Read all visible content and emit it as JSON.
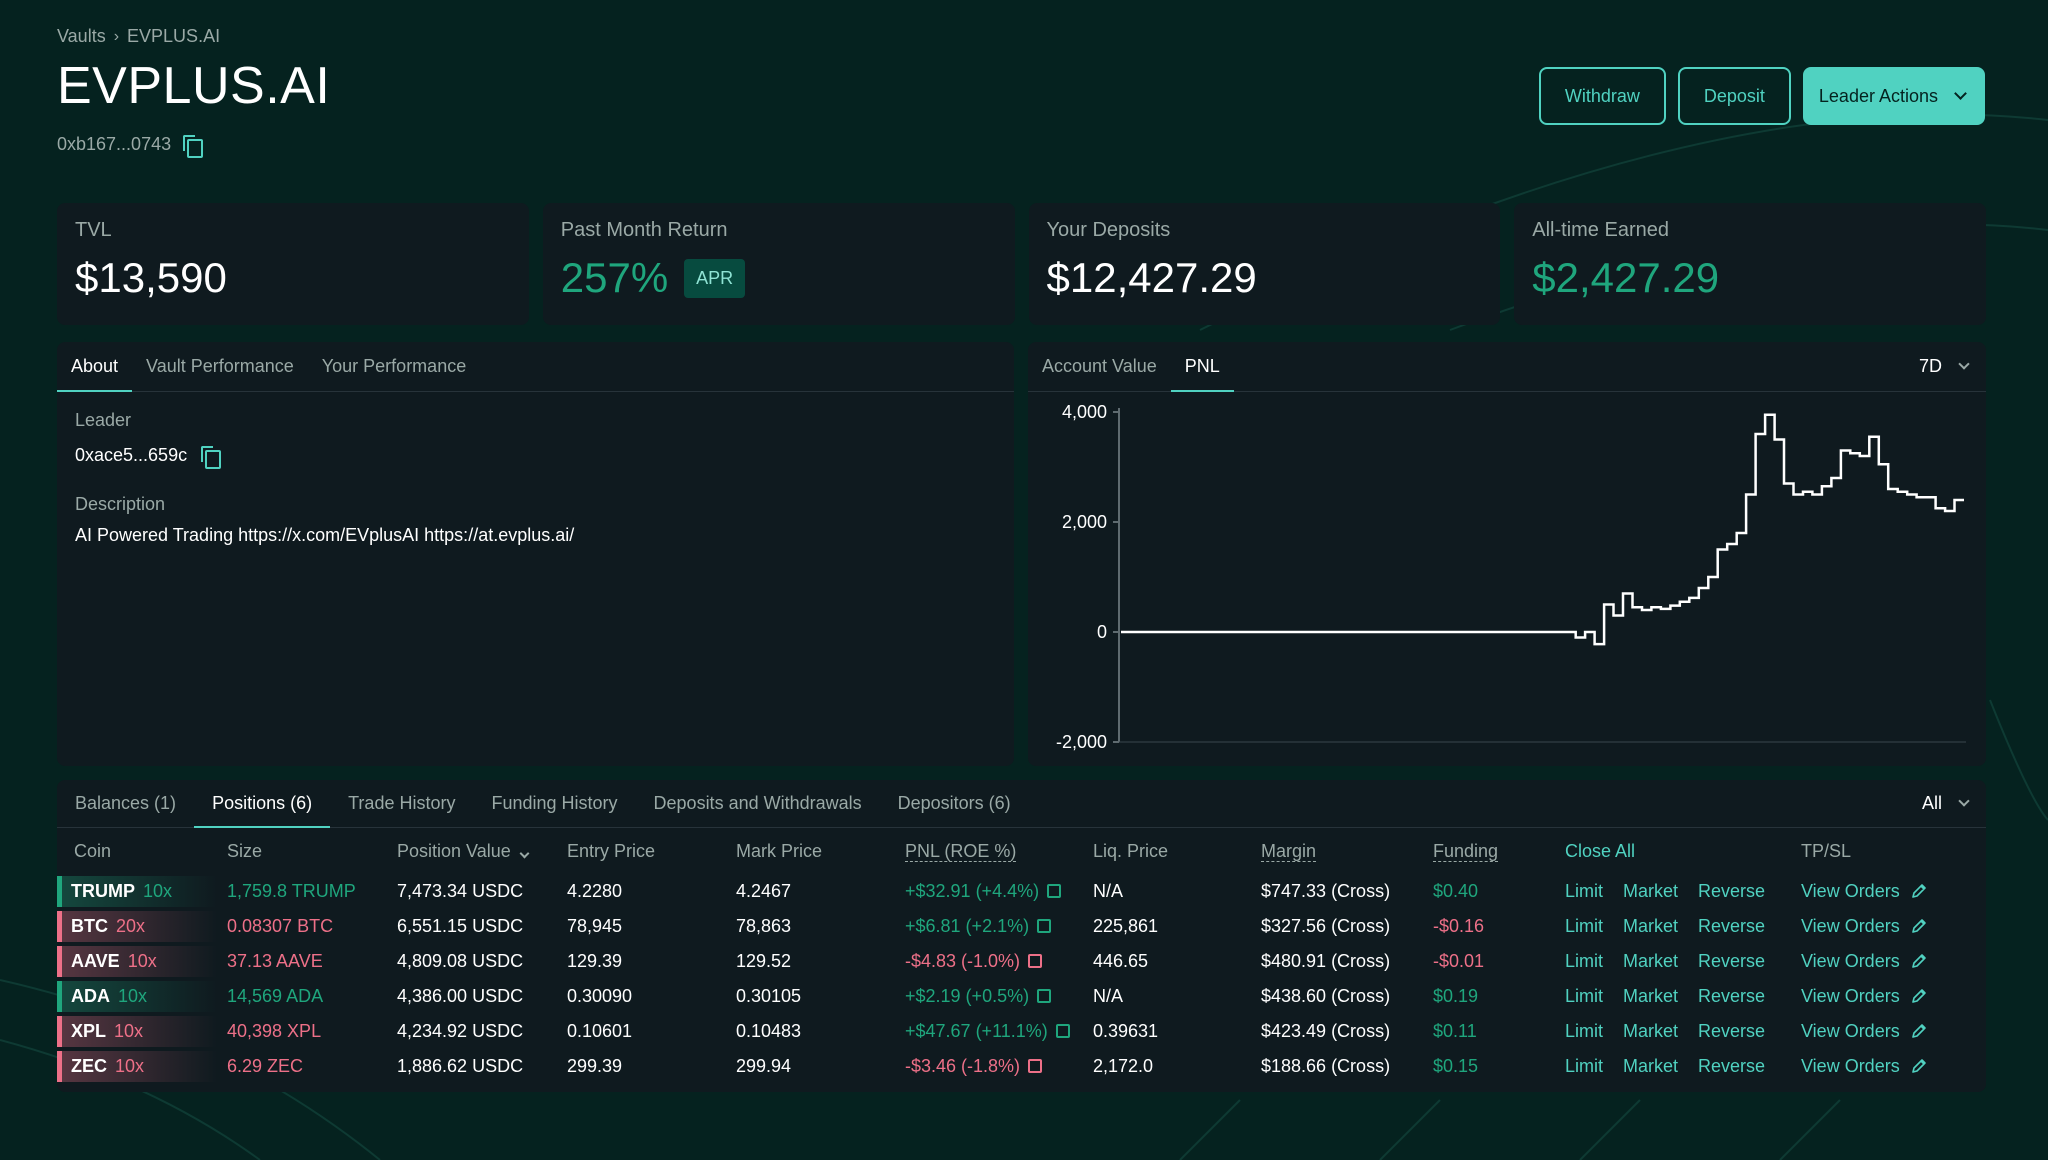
{
  "breadcrumb": {
    "parent": "Vaults",
    "current": "EVPLUS.AI"
  },
  "vault": {
    "title": "EVPLUS.AI",
    "address": "0xb167...0743"
  },
  "actions": {
    "withdraw": "Withdraw",
    "deposit": "Deposit",
    "leader_actions": "Leader Actions"
  },
  "stats": {
    "tvl": {
      "label": "TVL",
      "value": "$13,590"
    },
    "past_month_return": {
      "label": "Past Month Return",
      "value": "257%",
      "badge": "APR"
    },
    "your_deposits": {
      "label": "Your Deposits",
      "value": "$12,427.29"
    },
    "all_time_earned": {
      "label": "All-time Earned",
      "value": "$2,427.29"
    }
  },
  "about": {
    "tabs": [
      "About",
      "Vault Performance",
      "Your Performance"
    ],
    "leader_label": "Leader",
    "leader_value": "0xace5...659c",
    "description_label": "Description",
    "description_value": "AI Powered Trading https://x.com/EVplusAI https://at.evplus.ai/"
  },
  "chart_panel": {
    "tabs": [
      "Account Value",
      "PNL"
    ],
    "range": "7D"
  },
  "chart_data": {
    "type": "line",
    "title": "",
    "xlabel": "",
    "ylabel": "",
    "ylim": [
      -2000,
      4000
    ],
    "yticks": [
      4000,
      2000,
      0,
      -2000
    ],
    "ytick_labels": [
      "4,000",
      "2,000",
      "0",
      "-2,000"
    ],
    "step": true,
    "series": [
      {
        "values": [
          0,
          0,
          0,
          0,
          0,
          0,
          0,
          0,
          0,
          0,
          0,
          0,
          0,
          0,
          0,
          0,
          0,
          0,
          0,
          0,
          0,
          0,
          0,
          0,
          0,
          0,
          0,
          0,
          0,
          0,
          0,
          0,
          0,
          0,
          0,
          0,
          0,
          0,
          0,
          0,
          0,
          0,
          0,
          0,
          0,
          0,
          0,
          0,
          -100,
          0,
          -220,
          500,
          300,
          700,
          450,
          400,
          450,
          420,
          480,
          550,
          620,
          800,
          1000,
          1500,
          1600,
          1800,
          2500,
          3600,
          3950,
          3500,
          2700,
          2500,
          2550,
          2500,
          2650,
          2800,
          3300,
          3250,
          3200,
          3550,
          3050,
          2600,
          2550,
          2500,
          2450,
          2450,
          2250,
          2200,
          2400
        ]
      }
    ]
  },
  "table": {
    "tabs": [
      "Balances (1)",
      "Positions (6)",
      "Trade History",
      "Funding History",
      "Deposits and Withdrawals",
      "Depositors (6)"
    ],
    "filter": "All",
    "headers": {
      "coin": "Coin",
      "size": "Size",
      "position_value": "Position Value",
      "entry_price": "Entry Price",
      "mark_price": "Mark Price",
      "pnl": "PNL (ROE %)",
      "liq_price": "Liq. Price",
      "margin": "Margin",
      "funding": "Funding",
      "close_all": "Close All",
      "tpsl": "TP/SL"
    },
    "actions": {
      "limit": "Limit",
      "market": "Market",
      "reverse": "Reverse",
      "view_orders": "View Orders"
    },
    "rows": [
      {
        "coin": "TRUMP",
        "lev": "10x",
        "side": "long",
        "size": "1,759.8 TRUMP",
        "value": "7,473.34 USDC",
        "entry": "4.2280",
        "mark": "4.2467",
        "pnl": "+$32.91 (+4.4%)",
        "pnl_sign": "pos",
        "liq": "N/A",
        "margin": "$747.33 (Cross)",
        "funding": "$0.40",
        "funding_sign": "pos"
      },
      {
        "coin": "BTC",
        "lev": "20x",
        "side": "short",
        "size": "0.08307 BTC",
        "value": "6,551.15 USDC",
        "entry": "78,945",
        "mark": "78,863",
        "pnl": "+$6.81 (+2.1%)",
        "pnl_sign": "pos",
        "liq": "225,861",
        "margin": "$327.56 (Cross)",
        "funding": "-$0.16",
        "funding_sign": "neg"
      },
      {
        "coin": "AAVE",
        "lev": "10x",
        "side": "short",
        "size": "37.13 AAVE",
        "value": "4,809.08 USDC",
        "entry": "129.39",
        "mark": "129.52",
        "pnl": "-$4.83 (-1.0%)",
        "pnl_sign": "neg",
        "liq": "446.65",
        "margin": "$480.91 (Cross)",
        "funding": "-$0.01",
        "funding_sign": "neg"
      },
      {
        "coin": "ADA",
        "lev": "10x",
        "side": "long",
        "size": "14,569 ADA",
        "value": "4,386.00 USDC",
        "entry": "0.30090",
        "mark": "0.30105",
        "pnl": "+$2.19 (+0.5%)",
        "pnl_sign": "pos",
        "liq": "N/A",
        "margin": "$438.60 (Cross)",
        "funding": "$0.19",
        "funding_sign": "pos"
      },
      {
        "coin": "XPL",
        "lev": "10x",
        "side": "short",
        "size": "40,398 XPL",
        "value": "4,234.92 USDC",
        "entry": "0.10601",
        "mark": "0.10483",
        "pnl": "+$47.67 (+11.1%)",
        "pnl_sign": "pos",
        "liq": "0.39631",
        "margin": "$423.49 (Cross)",
        "funding": "$0.11",
        "funding_sign": "pos"
      },
      {
        "coin": "ZEC",
        "lev": "10x",
        "side": "short",
        "size": "6.29 ZEC",
        "value": "1,886.62 USDC",
        "entry": "299.39",
        "mark": "299.94",
        "pnl": "-$3.46 (-1.8%)",
        "pnl_sign": "neg",
        "liq": "2,172.0",
        "margin": "$188.66 (Cross)",
        "funding": "$0.15",
        "funding_sign": "pos"
      }
    ]
  },
  "colors": {
    "accent": "#50d2c1",
    "positive": "#1fa67d",
    "negative": "#ed7088",
    "background": "#05221f",
    "panel": "#0f1a1f"
  }
}
